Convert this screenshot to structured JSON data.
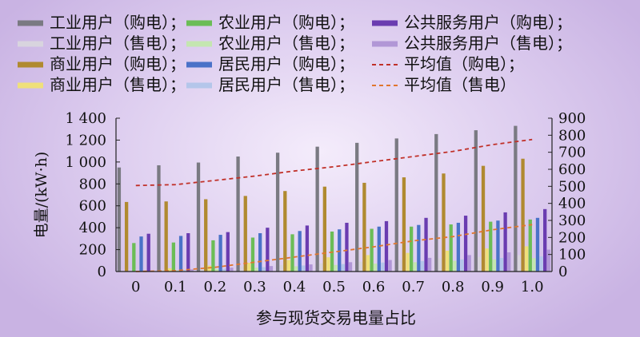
{
  "chart_data": {
    "type": "bar",
    "xlabel": "参与现货交易电量占比",
    "ylabel": "电量/(kW·h)",
    "categories": [
      "0",
      "0.1",
      "0.2",
      "0.3",
      "0.4",
      "0.5",
      "0.6",
      "0.7",
      "0.8",
      "0.9",
      "1.0"
    ],
    "left_axis": {
      "ylim": [
        0,
        1400
      ],
      "ticks": [
        "0",
        "200",
        "400",
        "600",
        "800",
        "1 000",
        "1 200",
        "1 400"
      ],
      "tick_values": [
        0,
        200,
        400,
        600,
        800,
        1000,
        1200,
        1400
      ]
    },
    "right_axis": {
      "ylim": [
        0,
        900
      ],
      "ticks": [
        "0",
        "100",
        "200",
        "300",
        "400",
        "500",
        "600",
        "700",
        "800",
        "900"
      ],
      "tick_values": [
        0,
        100,
        200,
        300,
        400,
        500,
        600,
        700,
        800,
        900
      ]
    },
    "series": [
      {
        "name": "工业用户（购电）；",
        "kind": "bar",
        "axis": "left",
        "color": "#7a7a82",
        "values": [
          950,
          970,
          995,
          1050,
          1085,
          1140,
          1175,
          1215,
          1255,
          1290,
          1330
        ]
      },
      {
        "name": "工业用户（售电）；",
        "kind": "bar",
        "axis": "left",
        "color": "#d8d4de",
        "values": [
          0,
          15,
          30,
          45,
          60,
          75,
          90,
          105,
          120,
          135,
          150
        ]
      },
      {
        "name": "商业用户（购电）；",
        "kind": "bar",
        "axis": "left",
        "color": "#b08a30",
        "values": [
          635,
          640,
          660,
          690,
          735,
          775,
          810,
          860,
          895,
          965,
          1030
        ]
      },
      {
        "name": "商业用户（售电）；",
        "kind": "bar",
        "axis": "left",
        "color": "#efe07a",
        "values": [
          0,
          30,
          55,
          80,
          105,
          130,
          150,
          170,
          190,
          210,
          230
        ]
      },
      {
        "name": "农业用户（购电）；",
        "kind": "bar",
        "axis": "left",
        "color": "#6bbd56",
        "values": [
          260,
          265,
          285,
          310,
          340,
          365,
          390,
          410,
          430,
          455,
          475
        ]
      },
      {
        "name": "农业用户（售电）；",
        "kind": "bar",
        "axis": "left",
        "color": "#c4e6b0",
        "values": [
          0,
          10,
          22,
          35,
          48,
          60,
          72,
          85,
          98,
          110,
          122
        ]
      },
      {
        "name": "居民用户（购电）；",
        "kind": "bar",
        "axis": "left",
        "color": "#4a72c8",
        "values": [
          320,
          325,
          335,
          350,
          370,
          385,
          410,
          425,
          445,
          465,
          490
        ]
      },
      {
        "name": "居民用户（售电）；",
        "kind": "bar",
        "axis": "left",
        "color": "#b4c6ea",
        "values": [
          0,
          12,
          25,
          40,
          55,
          68,
          82,
          96,
          110,
          124,
          138
        ]
      },
      {
        "name": "公共服务用户（购电）；",
        "kind": "bar",
        "axis": "left",
        "color": "#6a3cb0",
        "values": [
          345,
          350,
          360,
          400,
          420,
          445,
          460,
          490,
          510,
          540,
          570
        ]
      },
      {
        "name": "公共服务用户（售电）；",
        "kind": "bar",
        "axis": "left",
        "color": "#b197d6",
        "values": [
          0,
          20,
          35,
          50,
          65,
          85,
          105,
          125,
          150,
          175,
          200
        ]
      },
      {
        "name": "平均值（购电）；",
        "kind": "line",
        "axis": "right",
        "color": "#c03028",
        "dash": "5,4",
        "values": [
          505,
          510,
          535,
          560,
          590,
          615,
          645,
          675,
          705,
          745,
          775
        ]
      },
      {
        "name": "平均值（售电）",
        "kind": "line",
        "axis": "right",
        "color": "#e0762e",
        "dash": "5,4",
        "values": [
          0,
          5,
          25,
          55,
          85,
          115,
          145,
          180,
          205,
          245,
          275
        ]
      }
    ]
  }
}
